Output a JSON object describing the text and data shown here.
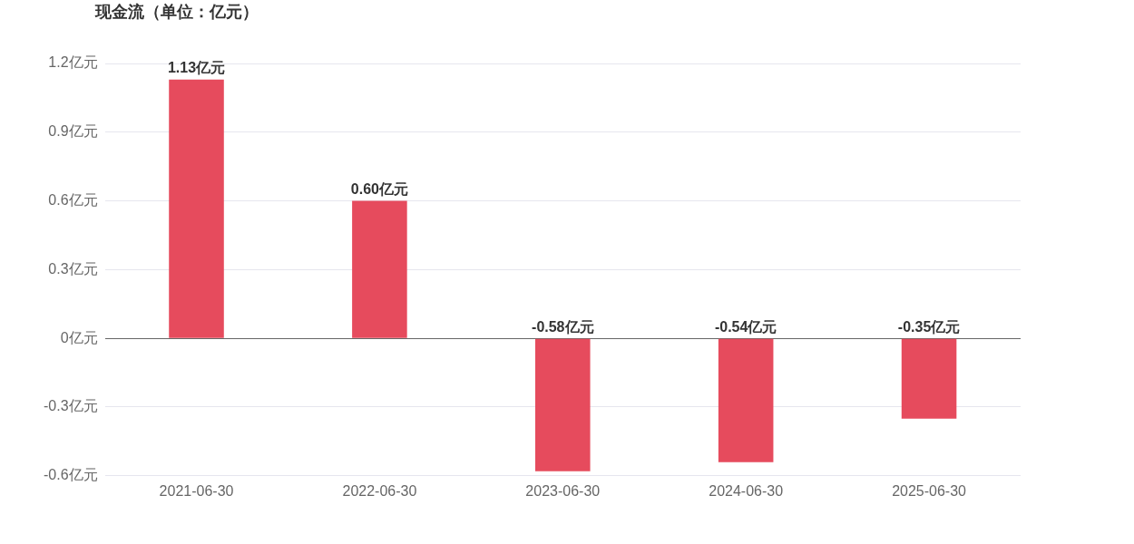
{
  "chart_data": {
    "type": "bar",
    "title": "现金流（单位：亿元）",
    "categories": [
      "2021-06-30",
      "2022-06-30",
      "2023-06-30",
      "2024-06-30",
      "2025-06-30"
    ],
    "values": [
      1.13,
      0.6,
      -0.58,
      -0.54,
      -0.35
    ],
    "value_labels": [
      "1.13亿元",
      "0.60亿元",
      "-0.58亿元",
      "-0.54亿元",
      "-0.35亿元"
    ],
    "color": "#e64b5d",
    "ylim": [
      -0.6,
      1.2
    ],
    "yticks": [
      {
        "value": -0.6,
        "label": "-0.6亿元"
      },
      {
        "value": -0.3,
        "label": "-0.3亿元"
      },
      {
        "value": 0,
        "label": "0亿元"
      },
      {
        "value": 0.3,
        "label": "0.3亿元"
      },
      {
        "value": 0.6,
        "label": "0.6亿元"
      },
      {
        "value": 0.9,
        "label": "0.9亿元"
      },
      {
        "value": 1.2,
        "label": "1.2亿元"
      }
    ],
    "grid": "y",
    "legend": false
  }
}
